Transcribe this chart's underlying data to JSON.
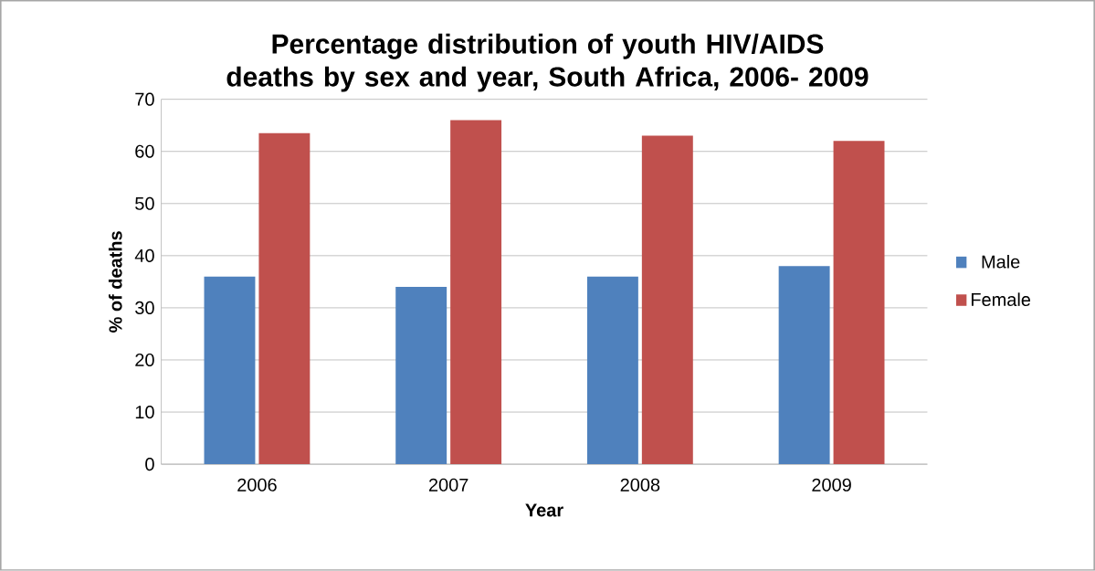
{
  "chart_data": {
    "type": "bar",
    "title": "Percentage distribution of youth HIV/AIDS deaths by sex and year, South Africa, 2006- 2009",
    "xlabel": "Year",
    "ylabel": "% of deaths",
    "categories": [
      "2006",
      "2007",
      "2008",
      "2009"
    ],
    "series": [
      {
        "name": "Male",
        "color": "#4f81bd",
        "values": [
          36,
          34,
          36,
          38
        ]
      },
      {
        "name": "Female",
        "color": "#c0504d",
        "values": [
          63.5,
          66,
          63,
          62
        ]
      }
    ],
    "ylim": [
      0,
      70
    ],
    "yticks": [
      0,
      10,
      20,
      30,
      40,
      50,
      60,
      70
    ],
    "grid": "y",
    "legend": "right"
  }
}
